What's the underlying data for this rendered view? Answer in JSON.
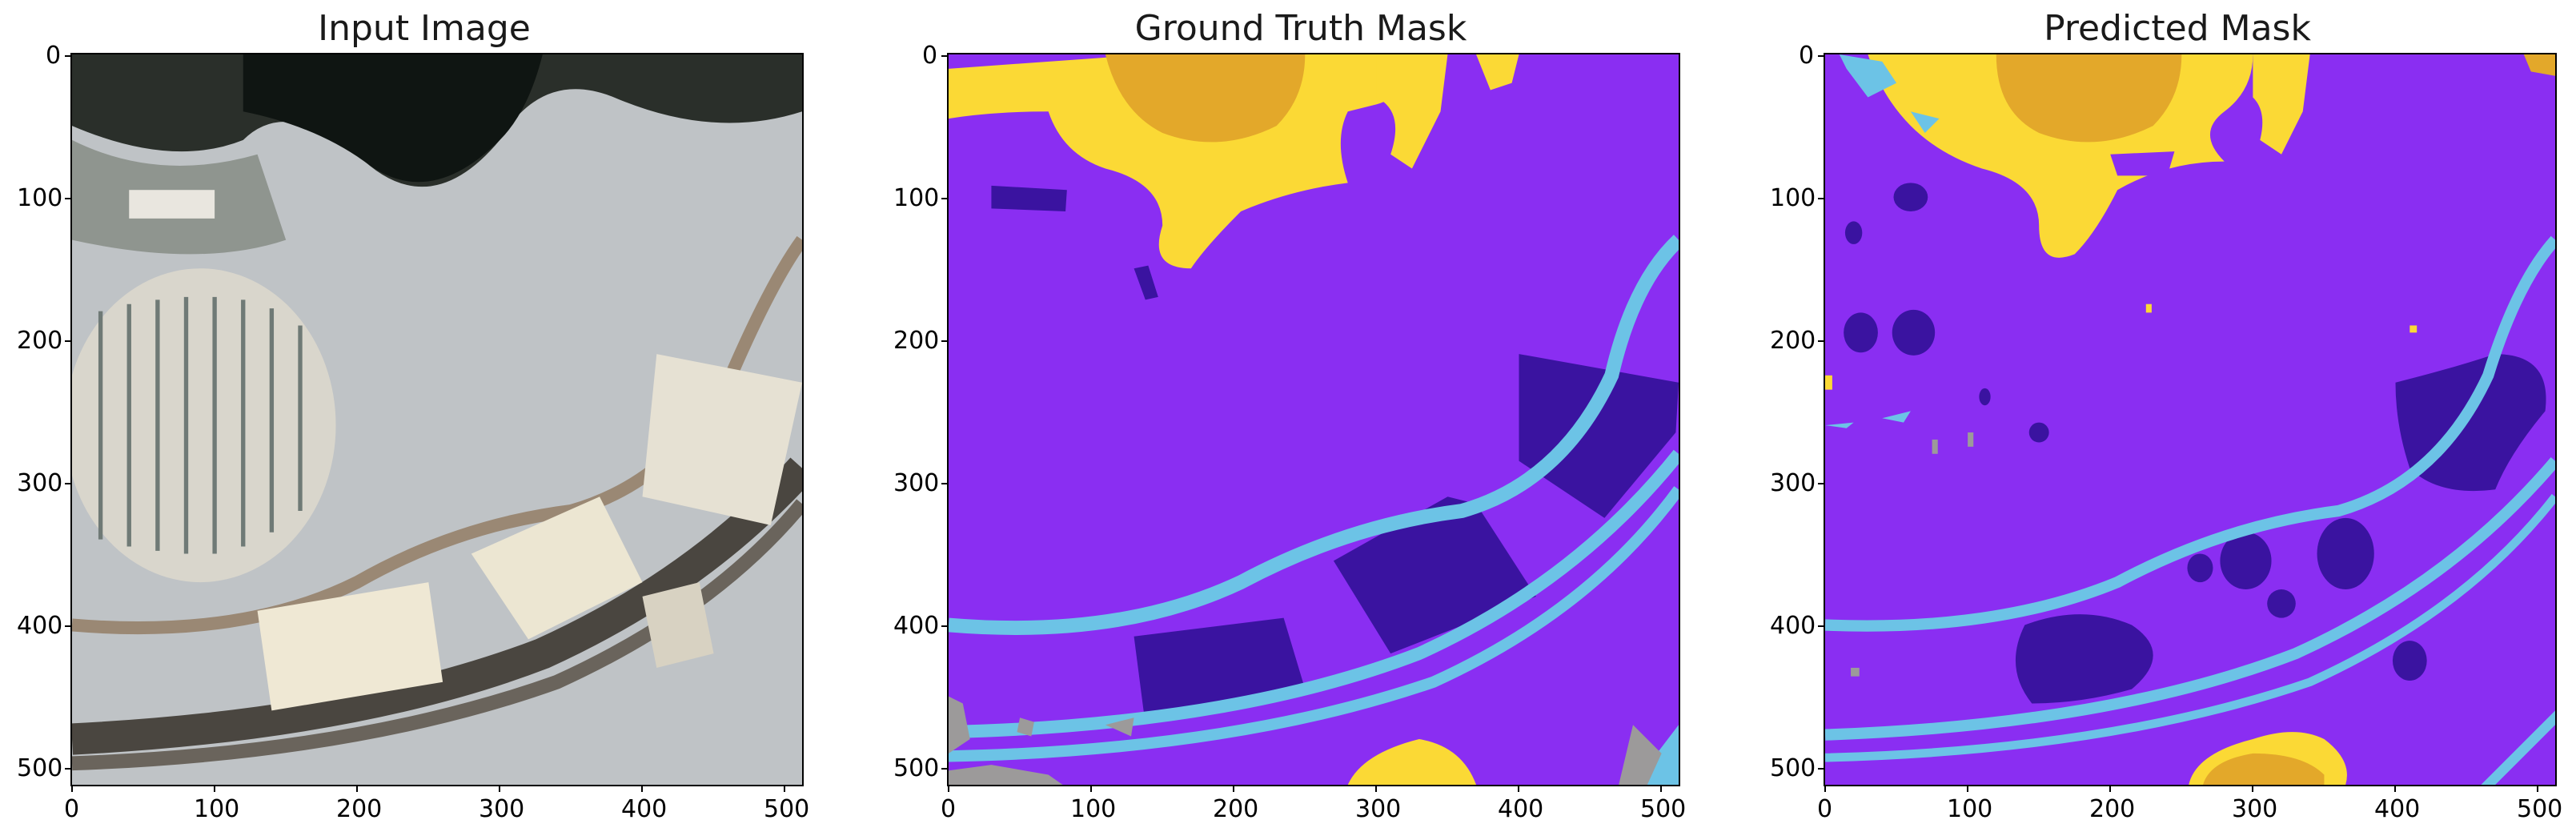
{
  "figure": {
    "panels": [
      {
        "title": "Input Image",
        "kind": "photo"
      },
      {
        "title": "Ground Truth Mask",
        "kind": "ground-truth"
      },
      {
        "title": "Predicted Mask",
        "kind": "prediction"
      }
    ],
    "x_ticks": [
      "0",
      "100",
      "200",
      "300",
      "400",
      "500"
    ],
    "y_ticks": [
      "0",
      "100",
      "200",
      "300",
      "400",
      "500"
    ],
    "image_extent": [
      0,
      512
    ],
    "colors": {
      "background_class": "#8a2ef2",
      "building": "#3a13a0",
      "road_water": "#6cc3e6",
      "yellow_class": "#fbd935",
      "orange_class": "#e3a82a",
      "gray_class": "#9c9a9a"
    }
  }
}
